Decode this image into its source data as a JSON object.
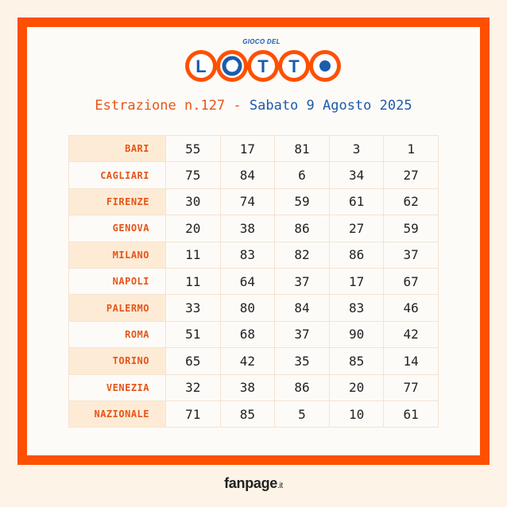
{
  "logo": {
    "small_text": "GIOCO DEL",
    "word": "LOTTO"
  },
  "title": {
    "prefix": "Estrazione n.127 - ",
    "date": "Sabato 9 Agosto 2025"
  },
  "rows": [
    {
      "city": "BARI",
      "numbers": [
        "55",
        "17",
        "81",
        "3",
        "1"
      ]
    },
    {
      "city": "CAGLIARI",
      "numbers": [
        "75",
        "84",
        "6",
        "34",
        "27"
      ]
    },
    {
      "city": "FIRENZE",
      "numbers": [
        "30",
        "74",
        "59",
        "61",
        "62"
      ]
    },
    {
      "city": "GENOVA",
      "numbers": [
        "20",
        "38",
        "86",
        "27",
        "59"
      ]
    },
    {
      "city": "MILANO",
      "numbers": [
        "11",
        "83",
        "82",
        "86",
        "37"
      ]
    },
    {
      "city": "NAPOLI",
      "numbers": [
        "11",
        "64",
        "37",
        "17",
        "67"
      ]
    },
    {
      "city": "PALERMO",
      "numbers": [
        "33",
        "80",
        "84",
        "83",
        "46"
      ]
    },
    {
      "city": "ROMA",
      "numbers": [
        "51",
        "68",
        "37",
        "90",
        "42"
      ]
    },
    {
      "city": "TORINO",
      "numbers": [
        "65",
        "42",
        "35",
        "85",
        "14"
      ]
    },
    {
      "city": "VENEZIA",
      "numbers": [
        "32",
        "38",
        "86",
        "20",
        "77"
      ]
    },
    {
      "city": "NAZIONALE",
      "numbers": [
        "71",
        "85",
        "5",
        "10",
        "61"
      ]
    }
  ],
  "footer": {
    "brand": "fanpage",
    "tld": ".it"
  },
  "colors": {
    "frame": "#fe5000",
    "accent": "#e65518",
    "blue": "#1e5aa8"
  }
}
